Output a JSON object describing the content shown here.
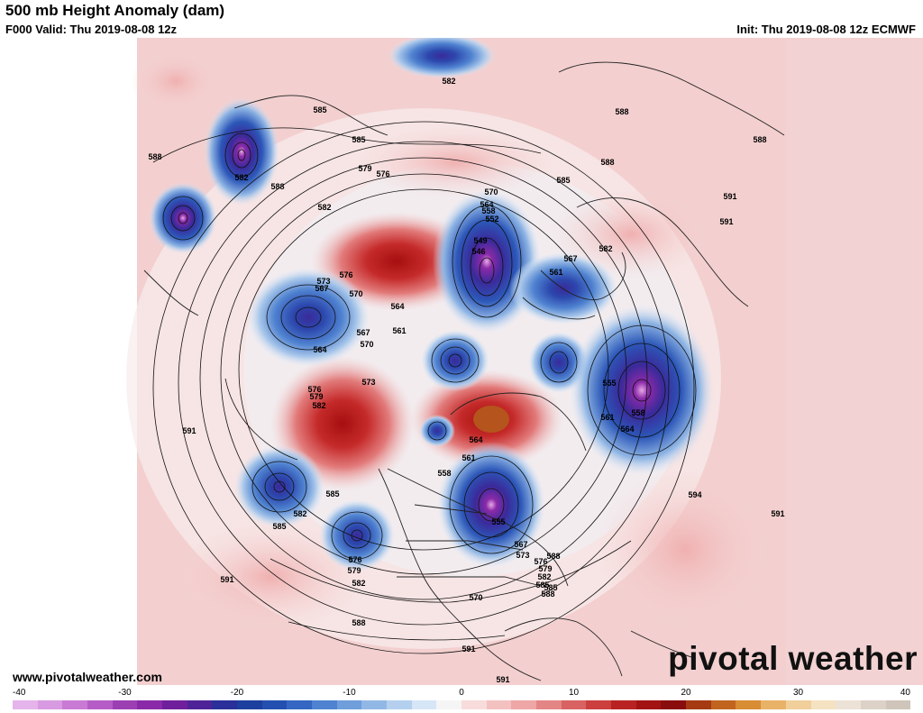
{
  "header": {
    "title": "500 mb Height Anomaly (dam)",
    "valid": "F000 Valid: Thu 2019-08-08 12z",
    "init": "Init: Thu 2019-08-08 12z ECMWF"
  },
  "footer": {
    "url": "www.pivotalweather.com",
    "brand": "pivotal weather"
  },
  "colorbar": {
    "ticks": [
      "-40",
      "-30",
      "-20",
      "-10",
      "0",
      "10",
      "20",
      "30",
      "40"
    ],
    "colors": [
      "#e4b4ea",
      "#d89ae0",
      "#c97ad4",
      "#b65cc6",
      "#9c3fb3",
      "#8a2aa8",
      "#6f1f9c",
      "#4e2398",
      "#2a2f9a",
      "#1d3f9e",
      "#2350b0",
      "#3466c2",
      "#4f82d0",
      "#6f9edb",
      "#91b8e5",
      "#b4d0ee",
      "#d6e6f6",
      "#f5f5f5",
      "#f8dcdc",
      "#f4c1c1",
      "#eea6a6",
      "#e48585",
      "#d96262",
      "#cc3f3f",
      "#b82222",
      "#a31313",
      "#8a0d0d",
      "#a53a13",
      "#c0641e",
      "#d88c34",
      "#e8b268",
      "#f0cf9b",
      "#f5e2c2",
      "#ece2d6",
      "#dcd2c8",
      "#cfc5bb"
    ]
  },
  "contour_labels": [
    "588",
    "582",
    "585",
    "591",
    "582",
    "585",
    "588",
    "588",
    "585",
    "579",
    "576",
    "582",
    "588",
    "570",
    "564",
    "558",
    "552",
    "549",
    "546",
    "567",
    "561",
    "582",
    "591",
    "576",
    "573",
    "567",
    "570",
    "564",
    "567",
    "570",
    "561",
    "564",
    "555",
    "558",
    "561",
    "564",
    "576",
    "579",
    "582",
    "573",
    "585",
    "582",
    "585",
    "564",
    "561",
    "558",
    "576",
    "579",
    "582",
    "585",
    "588",
    "555",
    "567",
    "573",
    "576",
    "579",
    "582",
    "585",
    "588",
    "570",
    "591",
    "591",
    "594",
    "591",
    "591",
    "588",
    "588",
    "591"
  ]
}
